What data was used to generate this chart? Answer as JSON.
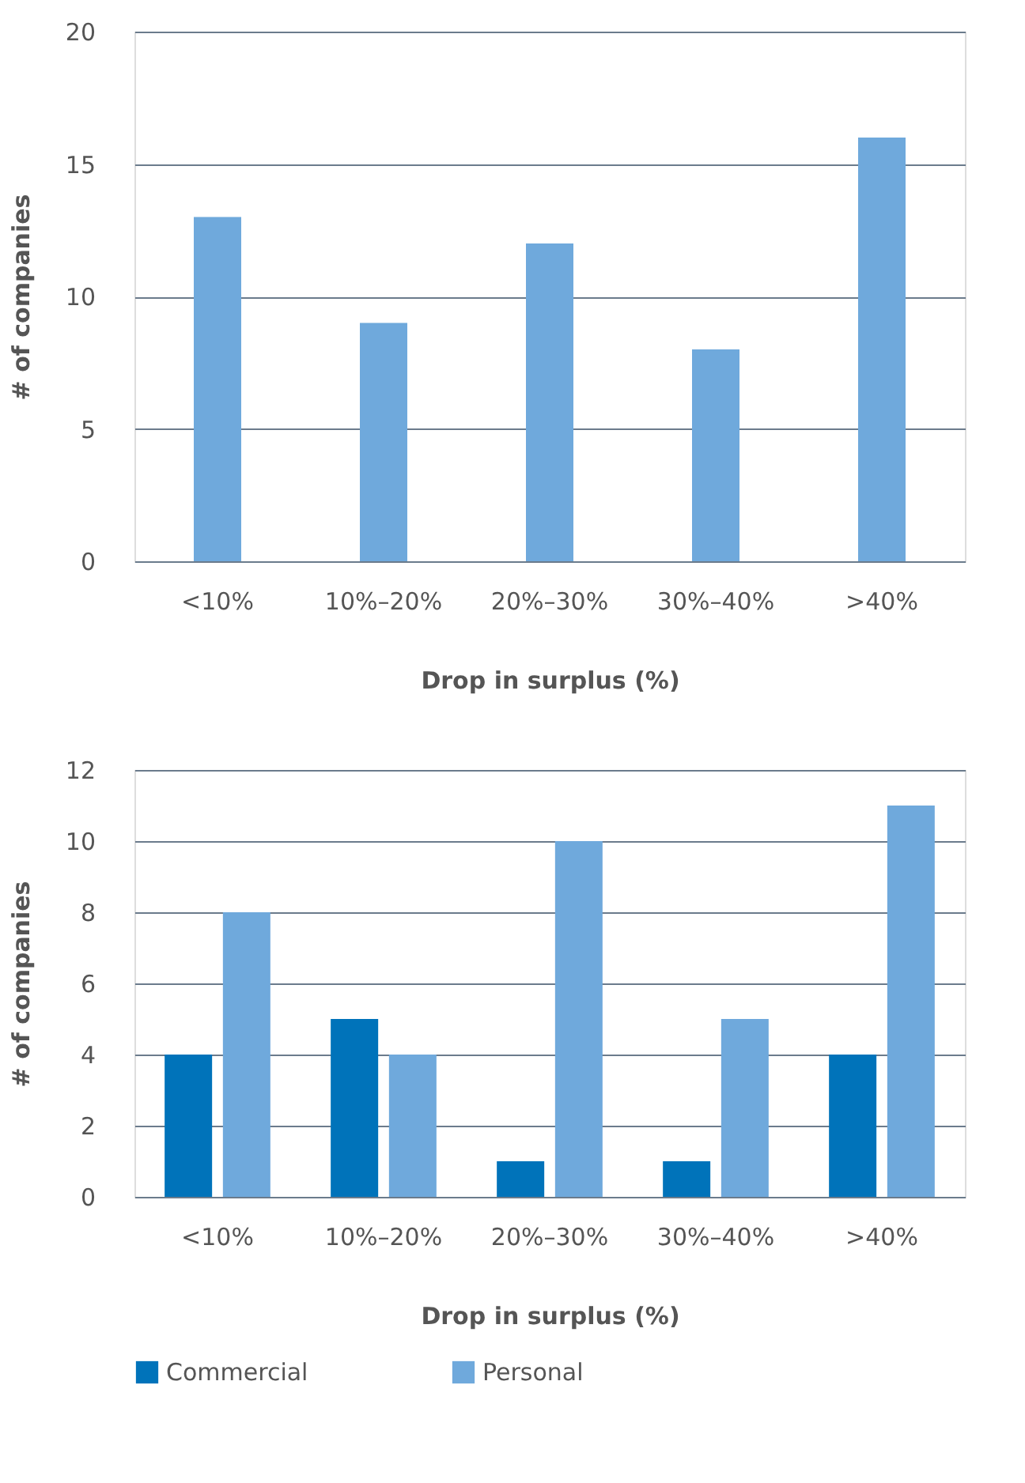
{
  "chart_data": [
    {
      "type": "bar",
      "xlabel": "Drop in surplus (%)",
      "ylabel": "# of companies",
      "categories": [
        "<10%",
        "10%–20%",
        "20%–30%",
        "30%–40%",
        ">40%"
      ],
      "series": [
        {
          "color": "#6fa9dc",
          "values": [
            13,
            9,
            12,
            8,
            16
          ]
        }
      ],
      "ylim": [
        0,
        20
      ],
      "yticks": [
        0,
        5,
        10,
        15,
        20
      ],
      "grid": "y"
    },
    {
      "type": "bar",
      "xlabel": "Drop in surplus (%)",
      "ylabel": "# of companies",
      "categories": [
        "<10%",
        "10%–20%",
        "20%–30%",
        "30%–40%",
        ">40%"
      ],
      "series": [
        {
          "name": "Commercial",
          "color": "#0073ba",
          "values": [
            4,
            5,
            1,
            1,
            4
          ]
        },
        {
          "name": "Personal",
          "color": "#6fa9dc",
          "values": [
            8,
            4,
            10,
            5,
            11
          ]
        }
      ],
      "ylim": [
        0,
        12
      ],
      "yticks": [
        0,
        2,
        4,
        6,
        8,
        10,
        12
      ],
      "grid": "y",
      "legend": "bottom"
    }
  ]
}
